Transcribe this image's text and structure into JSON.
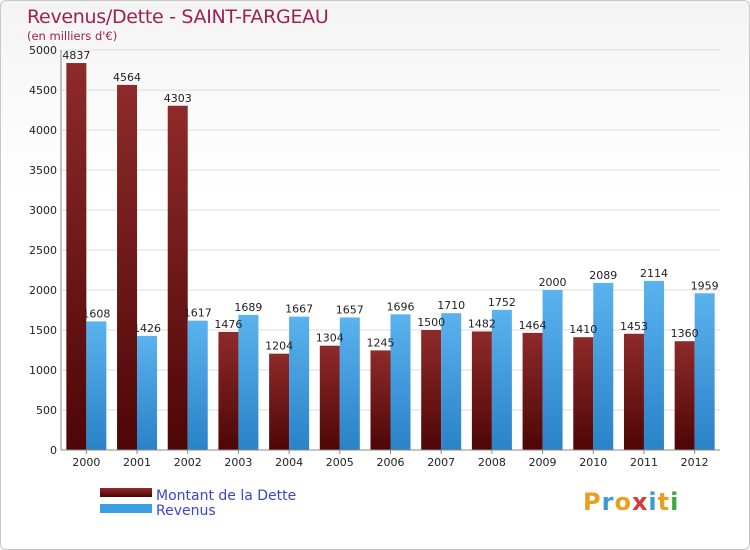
{
  "title": "Revenus/Dette - SAINT-FARGEAU",
  "subtitle": "(en milliers d'€)",
  "logo": {
    "text": "Proxiti",
    "colors": [
      "#e8a020",
      "#3a9ad8",
      "#e8a020",
      "#d83a3a",
      "#3a9ad8",
      "#e8a020",
      "#3aaa3a"
    ]
  },
  "chart_data": {
    "type": "bar",
    "categories": [
      "2000",
      "2001",
      "2002",
      "2003",
      "2004",
      "2005",
      "2006",
      "2007",
      "2008",
      "2009",
      "2010",
      "2011",
      "2012"
    ],
    "series": [
      {
        "name": "Montant de la Dette",
        "color": "#7a1e1e",
        "values": [
          4837,
          4564,
          4303,
          1476,
          1204,
          1304,
          1245,
          1500,
          1482,
          1464,
          1410,
          1453,
          1360
        ]
      },
      {
        "name": "Revenus",
        "color": "#3a9ee0",
        "values": [
          1608,
          1426,
          1617,
          1689,
          1667,
          1657,
          1696,
          1710,
          1752,
          2000,
          2089,
          2114,
          1959
        ]
      }
    ],
    "value_labels": {
      "Montant de la Dette": [
        "4837",
        "4564",
        "4303",
        "1476",
        "1204",
        "1304",
        "1245",
        "1500",
        "1482",
        "1464",
        "1410",
        "1453",
        "1360"
      ],
      "Revenus": [
        "1608",
        "1426",
        "1617",
        "1689",
        "1667",
        "1657",
        "1696",
        "1710",
        "1752",
        "2000",
        "2089",
        "2114",
        "1959"
      ]
    },
    "yticks": [
      "0",
      "500",
      "1000",
      "1500",
      "2000",
      "2500",
      "3000",
      "3500",
      "4000",
      "4500",
      "5000"
    ],
    "ylim": [
      0,
      5000
    ],
    "grid": true,
    "legend_position": "bottom-left"
  }
}
